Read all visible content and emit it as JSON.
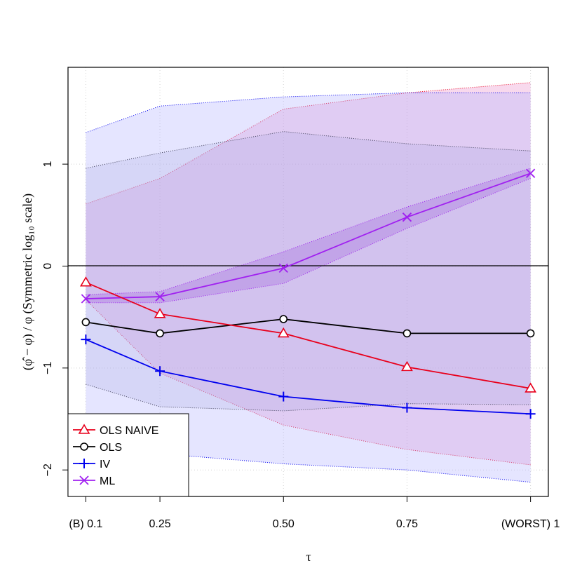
{
  "chart_data": {
    "type": "line",
    "title": "",
    "xlabel": "τ",
    "ylabel": "(φ̂ − φ) / φ (Symmetric log₁₀ scale)",
    "x": [
      0.1,
      0.25,
      0.5,
      0.75,
      1.0
    ],
    "x_tick_labels": [
      "(B) 0.1",
      "0.25",
      "0.50",
      "0.75",
      "(WORST) 1"
    ],
    "xlim": [
      0.064,
      1.036
    ],
    "ylim": [
      -2.26,
      1.95
    ],
    "y_ticks": [
      -2,
      -1,
      0,
      1
    ],
    "y_tick_labels": [
      "−2",
      "−1",
      "0",
      "1"
    ],
    "grid": true,
    "reference_line": 0,
    "legend_position": "bottom-left",
    "series": [
      {
        "name": "OLS NAIVE",
        "color": "#e8001c",
        "marker": "triangle",
        "values": [
          -0.16,
          -0.47,
          -0.66,
          -0.99,
          -1.2
        ],
        "band_upper": [
          0.61,
          0.86,
          1.54,
          1.7,
          1.8
        ],
        "band_lower": [
          -0.33,
          -1.05,
          -1.56,
          -1.8,
          -1.95
        ],
        "band_fill": "#e88ac8"
      },
      {
        "name": "OLS",
        "color": "#000000",
        "marker": "circle",
        "values": [
          -0.55,
          -0.66,
          -0.52,
          -0.66,
          -0.66
        ],
        "band_upper": [
          0.96,
          1.11,
          1.32,
          1.2,
          1.13
        ],
        "band_lower": [
          -1.16,
          -1.38,
          -1.42,
          -1.35,
          -1.36
        ],
        "band_fill": "#9898c8"
      },
      {
        "name": "IV",
        "color": "#0000ee",
        "marker": "plus",
        "values": [
          -0.72,
          -1.03,
          -1.28,
          -1.39,
          -1.45
        ],
        "band_upper": [
          1.31,
          1.57,
          1.66,
          1.7,
          1.7
        ],
        "band_lower": [
          -1.5,
          -1.84,
          -1.94,
          -2.0,
          -2.12
        ],
        "band_fill": "#b4b4ff"
      },
      {
        "name": "ML",
        "color": "#a020f0",
        "marker": "x",
        "values": [
          -0.32,
          -0.3,
          -0.02,
          0.48,
          0.91
        ],
        "band_upper": [
          -0.28,
          -0.25,
          0.14,
          0.58,
          0.96
        ],
        "band_lower": [
          -0.36,
          -0.36,
          -0.17,
          0.37,
          0.86
        ],
        "band_fill": "#b080e0"
      }
    ]
  }
}
